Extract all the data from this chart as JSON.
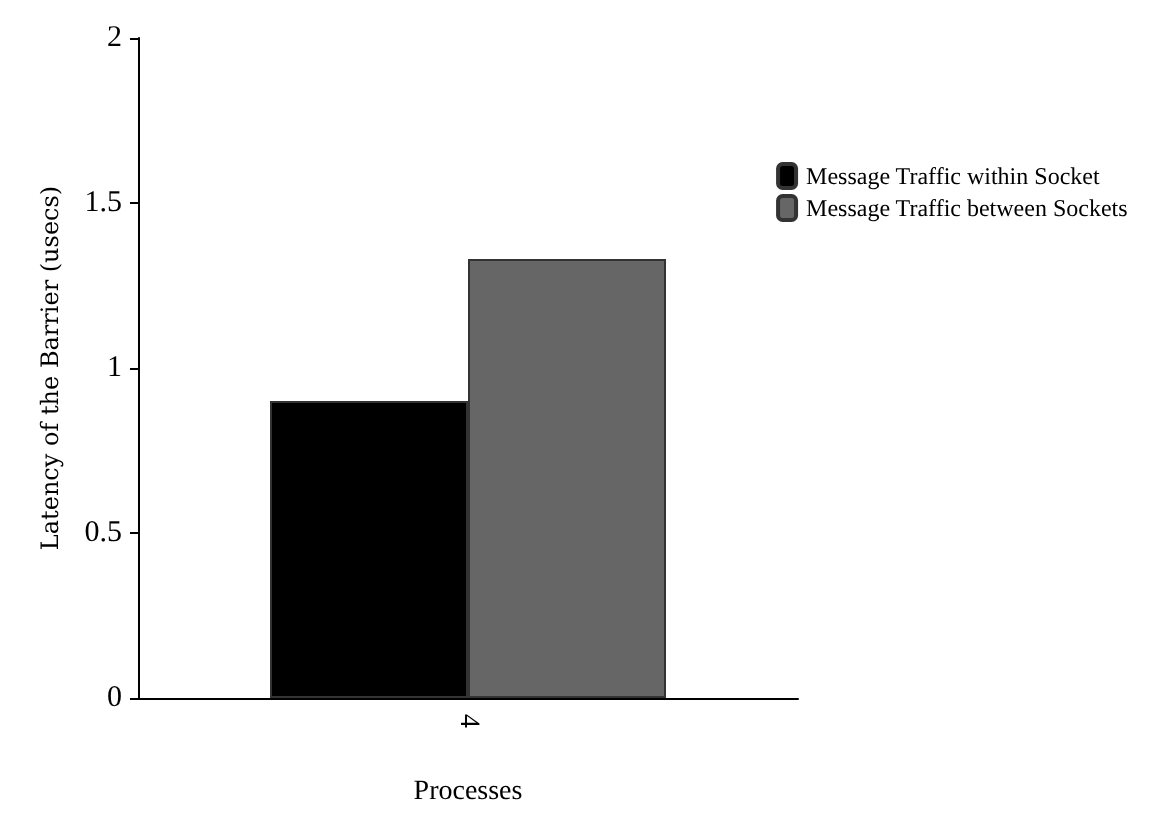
{
  "chart_data": {
    "type": "bar",
    "xlabel": "Processes",
    "ylabel": "Latency of the Barrier (usecs)",
    "categories": [
      "4"
    ],
    "series": [
      {
        "name": "Message Traffic within Socket",
        "color": "#000000",
        "values": [
          0.9
        ]
      },
      {
        "name": "Message Traffic between Sockets",
        "color": "#666666",
        "values": [
          1.33
        ]
      }
    ],
    "ylim": [
      0,
      2
    ],
    "yticks": [
      0,
      0.5,
      1,
      1.5,
      2
    ],
    "grid": false,
    "legend": "top right"
  }
}
